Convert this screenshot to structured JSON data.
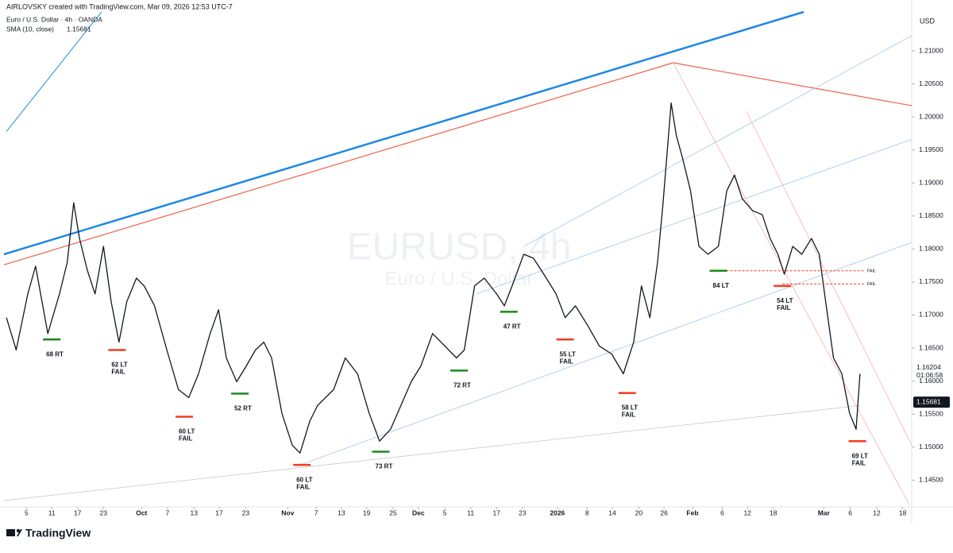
{
  "chart_data": {
    "type": "line",
    "attribution": "AIRLOVSKY created with TradingView.com, Mar 09, 2026 12:53 UTC-7",
    "title": "Euro / U.S. Dollar · 4h · OANDA",
    "indicator": {
      "label": "SMA (10, close)",
      "value": 1.15681
    },
    "watermark": "EURUSD, 4h",
    "watermark_subtitle": "Euro / U.S. Dollar",
    "y_axis_label": "USD",
    "brand": "TradingView",
    "xlim": [
      0,
      141
    ],
    "ylim": [
      1.1395,
      1.2159
    ],
    "yticks": [
      {
        "value": 1.145,
        "label": "1.14500"
      },
      {
        "value": 1.15,
        "label": "1.15000"
      },
      {
        "value": 1.155,
        "label": "1.15500"
      },
      {
        "value": 1.16,
        "label": "1.16000"
      },
      {
        "value": 1.165,
        "label": "1.16500"
      },
      {
        "value": 1.17,
        "label": "1.17000"
      },
      {
        "value": 1.175,
        "label": "1.17500"
      },
      {
        "value": 1.18,
        "label": "1.18000"
      },
      {
        "value": 1.185,
        "label": "1.18500"
      },
      {
        "value": 1.19,
        "label": "1.19000"
      },
      {
        "value": 1.195,
        "label": "1.19500"
      },
      {
        "value": 1.2,
        "label": "1.20000"
      },
      {
        "value": 1.205,
        "label": "1.20500"
      },
      {
        "value": 1.21,
        "label": "1.21000"
      }
    ],
    "xticks": [
      {
        "value": 4.1,
        "label": "5"
      },
      {
        "value": 8.0,
        "label": "11"
      },
      {
        "value": 12.0,
        "label": "17"
      },
      {
        "value": 16.0,
        "label": "23"
      },
      {
        "value": 21.9,
        "label": "Oct"
      },
      {
        "value": 25.9,
        "label": "7"
      },
      {
        "value": 30.0,
        "label": "13"
      },
      {
        "value": 33.9,
        "label": "17"
      },
      {
        "value": 38.0,
        "label": "23"
      },
      {
        "value": 44.5,
        "label": "Nov"
      },
      {
        "value": 48.9,
        "label": "7"
      },
      {
        "value": 52.8,
        "label": "13"
      },
      {
        "value": 56.7,
        "label": "19"
      },
      {
        "value": 60.8,
        "label": "25"
      },
      {
        "value": 64.7,
        "label": "Dec"
      },
      {
        "value": 68.8,
        "label": "5"
      },
      {
        "value": 72.8,
        "label": "11"
      },
      {
        "value": 76.8,
        "label": "17"
      },
      {
        "value": 80.8,
        "label": "23"
      },
      {
        "value": 86.2,
        "label": "2026"
      },
      {
        "value": 90.8,
        "label": "8"
      },
      {
        "value": 94.7,
        "label": "14"
      },
      {
        "value": 98.8,
        "label": "20"
      },
      {
        "value": 102.7,
        "label": "26"
      },
      {
        "value": 107.1,
        "label": "Feb"
      },
      {
        "value": 111.7,
        "label": "6"
      },
      {
        "value": 115.6,
        "label": "12"
      },
      {
        "value": 119.6,
        "label": "18"
      },
      {
        "value": 127.4,
        "label": "Mar"
      },
      {
        "value": 131.5,
        "label": "6"
      },
      {
        "value": 135.6,
        "label": "12"
      },
      {
        "value": 139.6,
        "label": "18"
      }
    ],
    "x": [
      1.0,
      2.5,
      4.3,
      5.5,
      7.4,
      9.2,
      10.4,
      11.4,
      12.3,
      13.5,
      14.7,
      16.0,
      17.2,
      18.4,
      19.6,
      21.1,
      22.3,
      23.9,
      25.8,
      27.6,
      29.2,
      30.7,
      32.5,
      33.8,
      35.0,
      36.6,
      38.1,
      39.5,
      40.8,
      42.0,
      43.6,
      45.2,
      46.4,
      47.9,
      49.1,
      51.6,
      53.4,
      55.3,
      57.1,
      58.7,
      60.4,
      62.0,
      63.6,
      65.1,
      66.9,
      68.8,
      70.6,
      71.8,
      73.4,
      74.9,
      76.8,
      78.0,
      79.2,
      81.0,
      82.5,
      84.1,
      86.0,
      87.4,
      89.0,
      90.9,
      92.7,
      94.6,
      96.4,
      98.0,
      99.2,
      100.5,
      101.7,
      102.5,
      103.8,
      104.6,
      105.6,
      106.8,
      108.1,
      109.5,
      111.1,
      112.4,
      113.6,
      114.8,
      116.4,
      117.9,
      119.1,
      120.3,
      121.3,
      122.6,
      124.0,
      125.5,
      126.7,
      127.7,
      128.9,
      130.2,
      131.4,
      132.4,
      133.0
    ],
    "series": [
      {
        "color": "#131722",
        "values": [
          1.1696,
          1.1647,
          1.1732,
          1.1774,
          1.1672,
          1.1732,
          1.178,
          1.187,
          1.1816,
          1.1768,
          1.1732,
          1.1804,
          1.172,
          1.1659,
          1.172,
          1.1756,
          1.1744,
          1.1714,
          1.1647,
          1.1587,
          1.1575,
          1.1611,
          1.1672,
          1.1708,
          1.1635,
          1.1599,
          1.1623,
          1.1647,
          1.1659,
          1.1635,
          1.1551,
          1.1503,
          1.1491,
          1.1539,
          1.1563,
          1.1587,
          1.1635,
          1.1611,
          1.1551,
          1.1509,
          1.1527,
          1.1563,
          1.1599,
          1.1623,
          1.1672,
          1.1653,
          1.1635,
          1.1647,
          1.1744,
          1.1756,
          1.1732,
          1.1714,
          1.1744,
          1.1792,
          1.1786,
          1.1762,
          1.1732,
          1.1696,
          1.1714,
          1.1684,
          1.1653,
          1.1641,
          1.1611,
          1.1659,
          1.1744,
          1.1696,
          1.178,
          1.1864,
          1.2021,
          1.1972,
          1.1936,
          1.1888,
          1.1804,
          1.1792,
          1.1804,
          1.1888,
          1.1912,
          1.1876,
          1.1858,
          1.1852,
          1.1816,
          1.1792,
          1.1762,
          1.1804,
          1.1792,
          1.1816,
          1.1792,
          1.172,
          1.1635,
          1.1611,
          1.1551,
          1.1527,
          1.1611
        ]
      }
    ],
    "markers": [
      {
        "text": [
          "68 RT"
        ],
        "color": "#1b8a1b",
        "x": 8.0,
        "y": 1.1663
      },
      {
        "text": [
          "62 LT",
          "FAIL"
        ],
        "color": "#f23c1e",
        "x": 18.1,
        "y": 1.1647
      },
      {
        "text": [
          "60 LT",
          "FAIL"
        ],
        "color": "#f23c1e",
        "x": 28.5,
        "y": 1.1546
      },
      {
        "text": [
          "52 RT"
        ],
        "color": "#1b8a1b",
        "x": 37.1,
        "y": 1.1581
      },
      {
        "text": [
          "60 LT",
          "FAIL"
        ],
        "color": "#f23c1e",
        "x": 46.7,
        "y": 1.1473
      },
      {
        "text": [
          "73 RT"
        ],
        "color": "#1b8a1b",
        "x": 58.9,
        "y": 1.1493
      },
      {
        "text": [
          "72 RT"
        ],
        "color": "#1b8a1b",
        "x": 71.0,
        "y": 1.1616
      },
      {
        "text": [
          "47 RT"
        ],
        "color": "#1b8a1b",
        "x": 78.7,
        "y": 1.1705
      },
      {
        "text": [
          "55 LT",
          "FAIL"
        ],
        "color": "#f23c1e",
        "x": 87.4,
        "y": 1.1663
      },
      {
        "text": [
          "58 LT",
          "FAIL"
        ],
        "color": "#f23c1e",
        "x": 97.0,
        "y": 1.1582
      },
      {
        "text": [
          "84 LT"
        ],
        "color": "#1b8a1b",
        "x": 111.1,
        "y": 1.1767
      },
      {
        "text": [
          "54 LT",
          "FAIL"
        ],
        "color": "#f23c1e",
        "x": 121.0,
        "y": 1.1744
      },
      {
        "text": [
          "69 LT",
          "FAIL"
        ],
        "color": "#f23c1e",
        "x": 132.6,
        "y": 1.1509
      }
    ],
    "fail_lines": [
      {
        "label": "FAIL",
        "color": "#f23c1e",
        "x": [
          111.1,
          133.6
        ],
        "y": 1.1767
      },
      {
        "label": "FAIL",
        "color": "#f23c1e",
        "x": [
          121.0,
          133.6
        ],
        "y": 1.1747
      }
    ],
    "trendlines": [
      {
        "color": "#1e88e5",
        "width": 2.5,
        "x": [
          0.6,
          124.3
        ],
        "y": [
          1.1792,
          1.2159
        ]
      },
      {
        "color": "#f0604a",
        "width": 1.2,
        "x": [
          0.6,
          104.1
        ],
        "y": [
          1.1776,
          1.2082
        ]
      },
      {
        "color": "#f0604a",
        "width": 1.2,
        "x": [
          104.1,
          141
        ],
        "y": [
          1.2082,
          1.2017
        ]
      },
      {
        "color": "#1e88e5",
        "width": 1,
        "x": [
          1.0,
          15.7
        ],
        "y": [
          1.1978,
          1.2159
        ]
      },
      {
        "color": "#9fc6ee",
        "width": 0.8,
        "x": [
          46.4,
          141
        ],
        "y": [
          1.1473,
          1.181
        ]
      },
      {
        "color": "#9fc6ee",
        "width": 0.8,
        "x": [
          73.7,
          141
        ],
        "y": [
          1.1732,
          1.1966
        ]
      },
      {
        "color": "#9fc6ee",
        "width": 0.8,
        "x": [
          81.0,
          141
        ],
        "y": [
          1.1804,
          1.2123
        ]
      },
      {
        "color": "#c8c8c8",
        "width": 0.8,
        "x": [
          0.6,
          133.0
        ],
        "y": [
          1.1419,
          1.1563
        ]
      },
      {
        "color": "#f7b3a8",
        "width": 0.8,
        "x": [
          104.1,
          140.6
        ],
        "y": [
          1.2082,
          1.1413
        ]
      },
      {
        "color": "#f7b3a8",
        "width": 0.8,
        "x": [
          115.4,
          141
        ],
        "y": [
          1.2009,
          1.1503
        ]
      }
    ],
    "price_labels": [
      {
        "value": 1.16204,
        "countdown": "01:06:58"
      },
      {
        "value": 1.15681
      }
    ]
  }
}
